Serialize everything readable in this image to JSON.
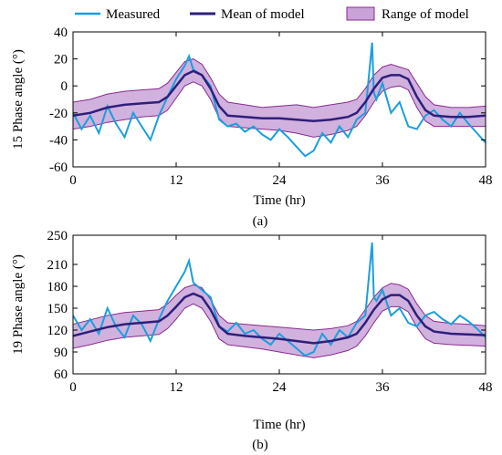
{
  "legend": {
    "measured": "Measured",
    "mean": "Mean of model",
    "range": "Range of model"
  },
  "colors": {
    "measured": "#1a9fdc",
    "mean": "#2e1f7a",
    "range_fill": "#c9a3d8",
    "range_edge": "#8b2a8f"
  },
  "chart_data": [
    {
      "type": "line",
      "caption": "(a)",
      "xlabel": "Time (hr)",
      "ylabel": "15 Phase angle  (°)",
      "xlim": [
        0,
        48
      ],
      "ylim": [
        -60,
        40
      ],
      "xticks": [
        0,
        12,
        24,
        36,
        48
      ],
      "yticks": [
        -60,
        -40,
        -20,
        0,
        20,
        40
      ],
      "series": [
        {
          "name": "Measured",
          "x": [
            0,
            1,
            2,
            3,
            4,
            5,
            6,
            7,
            8,
            9,
            10,
            11,
            12,
            13,
            13.5,
            14,
            15,
            16,
            17,
            18,
            19,
            20,
            21,
            22,
            23,
            24,
            25,
            26,
            27,
            28,
            29,
            30,
            31,
            32,
            33,
            34,
            34.8,
            35,
            35.3,
            36,
            37,
            38,
            39,
            40,
            41,
            42,
            43,
            44,
            45,
            46,
            47,
            48
          ],
          "values": [
            -20,
            -32,
            -22,
            -35,
            -15,
            -28,
            -38,
            -20,
            -30,
            -40,
            -22,
            -8,
            5,
            15,
            22,
            12,
            8,
            0,
            -25,
            -30,
            -28,
            -34,
            -30,
            -36,
            -40,
            -32,
            -38,
            -45,
            -52,
            -48,
            -35,
            -42,
            -30,
            -38,
            -25,
            -20,
            32,
            -5,
            -10,
            2,
            -20,
            -12,
            -30,
            -32,
            -22,
            -18,
            -25,
            -30,
            -20,
            -28,
            -35,
            -42
          ]
        },
        {
          "name": "Mean of model",
          "x": [
            0,
            2,
            4,
            6,
            8,
            10,
            11,
            12,
            13,
            14,
            15,
            16,
            17,
            18,
            20,
            22,
            24,
            26,
            28,
            30,
            32,
            33,
            34,
            35,
            36,
            37,
            38,
            39,
            40,
            41,
            42,
            44,
            46,
            48
          ],
          "values": [
            -22,
            -20,
            -16,
            -14,
            -13,
            -12,
            -8,
            0,
            8,
            11,
            8,
            -2,
            -15,
            -22,
            -23,
            -24,
            -24,
            -25,
            -26,
            -25,
            -23,
            -20,
            -12,
            -2,
            6,
            8,
            8,
            5,
            -8,
            -18,
            -22,
            -23,
            -23,
            -22
          ]
        },
        {
          "name": "Range of model",
          "x": [
            0,
            2,
            4,
            6,
            8,
            10,
            11,
            12,
            13,
            14,
            15,
            16,
            17,
            18,
            20,
            22,
            24,
            26,
            28,
            30,
            32,
            33,
            34,
            35,
            36,
            37,
            38,
            39,
            40,
            41,
            42,
            44,
            46,
            48
          ],
          "upper": [
            -12,
            -10,
            -6,
            -4,
            -3,
            -2,
            2,
            10,
            18,
            20,
            16,
            6,
            -6,
            -12,
            -14,
            -16,
            -15,
            -14,
            -16,
            -14,
            -12,
            -10,
            -2,
            8,
            14,
            16,
            14,
            12,
            2,
            -8,
            -14,
            -16,
            -16,
            -15
          ],
          "lower": [
            -32,
            -30,
            -27,
            -25,
            -23,
            -22,
            -18,
            -9,
            0,
            3,
            0,
            -10,
            -24,
            -30,
            -31,
            -32,
            -33,
            -35,
            -38,
            -36,
            -33,
            -30,
            -22,
            -12,
            -4,
            -1,
            0,
            -3,
            -16,
            -26,
            -30,
            -30,
            -30,
            -30
          ]
        }
      ]
    },
    {
      "type": "line",
      "caption": "(b)",
      "xlabel": "Time (hr)",
      "ylabel": "19 Phase angle  (°)",
      "xlim": [
        0,
        48
      ],
      "ylim": [
        60,
        250
      ],
      "xticks": [
        0,
        12,
        24,
        36,
        48
      ],
      "yticks": [
        60,
        90,
        120,
        150,
        180,
        210,
        250
      ],
      "series": [
        {
          "name": "Measured",
          "x": [
            0,
            1,
            2,
            3,
            4,
            5,
            6,
            7,
            8,
            9,
            10,
            11,
            12,
            13,
            13.5,
            14,
            15,
            16,
            17,
            18,
            19,
            20,
            21,
            22,
            23,
            24,
            25,
            26,
            27,
            28,
            29,
            30,
            31,
            32,
            33,
            34,
            34.8,
            35,
            35.3,
            36,
            37,
            38,
            39,
            40,
            41,
            42,
            43,
            44,
            45,
            46,
            47,
            48
          ],
          "values": [
            140,
            120,
            135,
            115,
            150,
            125,
            110,
            140,
            128,
            105,
            135,
            160,
            180,
            200,
            215,
            185,
            175,
            165,
            125,
            118,
            130,
            115,
            120,
            108,
            100,
            115,
            105,
            95,
            85,
            90,
            115,
            100,
            120,
            110,
            130,
            140,
            240,
            165,
            160,
            175,
            140,
            150,
            130,
            125,
            140,
            145,
            135,
            128,
            140,
            132,
            122,
            110
          ]
        },
        {
          "name": "Mean of model",
          "x": [
            0,
            2,
            4,
            6,
            8,
            10,
            11,
            12,
            13,
            14,
            15,
            16,
            17,
            18,
            20,
            22,
            24,
            26,
            28,
            30,
            32,
            33,
            34,
            35,
            36,
            37,
            38,
            39,
            40,
            41,
            42,
            44,
            46,
            48
          ],
          "values": [
            112,
            118,
            124,
            128,
            130,
            132,
            140,
            152,
            165,
            170,
            165,
            148,
            125,
            115,
            112,
            110,
            108,
            105,
            102,
            105,
            110,
            115,
            130,
            148,
            162,
            168,
            168,
            160,
            140,
            125,
            118,
            115,
            114,
            113
          ]
        },
        {
          "name": "Range of model",
          "x": [
            0,
            2,
            4,
            6,
            8,
            10,
            11,
            12,
            13,
            14,
            15,
            16,
            17,
            18,
            20,
            22,
            24,
            26,
            28,
            30,
            32,
            33,
            34,
            35,
            36,
            37,
            38,
            39,
            40,
            41,
            42,
            44,
            46,
            48
          ],
          "upper": [
            128,
            134,
            140,
            144,
            146,
            148,
            156,
            168,
            178,
            182,
            178,
            162,
            140,
            130,
            128,
            126,
            124,
            122,
            120,
            122,
            126,
            132,
            148,
            165,
            178,
            184,
            182,
            176,
            156,
            140,
            132,
            129,
            128,
            126
          ],
          "lower": [
            95,
            100,
            106,
            110,
            112,
            114,
            122,
            135,
            150,
            156,
            150,
            132,
            108,
            100,
            97,
            94,
            90,
            86,
            82,
            86,
            92,
            98,
            112,
            130,
            146,
            152,
            152,
            145,
            124,
            108,
            102,
            100,
            99,
            98
          ]
        }
      ]
    }
  ]
}
